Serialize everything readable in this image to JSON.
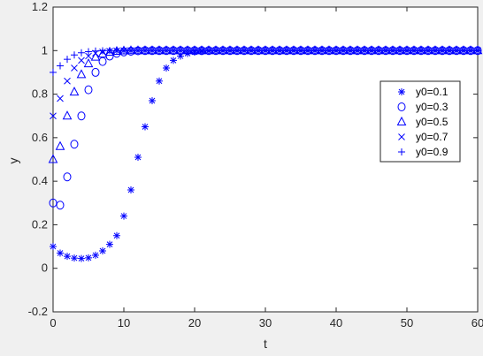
{
  "chart_data": {
    "type": "scatter",
    "title": "",
    "xlabel": "t",
    "ylabel": "y",
    "xlim": [
      0,
      60
    ],
    "ylim": [
      -0.2,
      1.2
    ],
    "xticks": [
      "0",
      "10",
      "20",
      "30",
      "40",
      "50",
      "60"
    ],
    "yticks": [
      "-0.2",
      "0",
      "0.2",
      "0.4",
      "0.6",
      "0.8",
      "1",
      "1.2"
    ],
    "grid": false,
    "legend_position": "right",
    "marker_color": "#0000ff",
    "series": [
      {
        "name": "y0=0.1",
        "marker": "asterisk",
        "x": [
          0,
          1,
          2,
          3,
          4,
          5,
          6,
          7,
          8,
          9,
          10,
          11,
          12,
          13,
          14,
          15,
          16,
          17,
          18,
          19,
          20,
          21,
          22,
          23,
          24,
          25,
          26,
          27,
          28,
          29,
          30,
          31,
          32,
          33,
          34,
          35,
          36,
          37,
          38,
          39,
          40,
          41,
          42,
          43,
          44,
          45,
          46,
          47,
          48,
          49,
          50,
          51,
          52,
          53,
          54,
          55,
          56,
          57,
          58,
          59,
          60
        ],
        "y": [
          0.1,
          0.07,
          0.055,
          0.047,
          0.045,
          0.048,
          0.06,
          0.08,
          0.11,
          0.15,
          0.24,
          0.36,
          0.51,
          0.65,
          0.77,
          0.86,
          0.92,
          0.955,
          0.975,
          0.987,
          0.993,
          0.996,
          0.998,
          0.999,
          1,
          1,
          1,
          1,
          1,
          1,
          1,
          1,
          1,
          1,
          1,
          1,
          1,
          1,
          1,
          1,
          1,
          1,
          1,
          1,
          1,
          1,
          1,
          1,
          1,
          1,
          1,
          1,
          1,
          1,
          1,
          1,
          1,
          1,
          1,
          1,
          1
        ]
      },
      {
        "name": "y0=0.3",
        "marker": "circle",
        "x": [
          0,
          1,
          2,
          3,
          4,
          5,
          6,
          7,
          8,
          9,
          10,
          11,
          12,
          13,
          14,
          15,
          16,
          17,
          18,
          19,
          20,
          21,
          22,
          23,
          24,
          25,
          26,
          27,
          28,
          29,
          30,
          31,
          32,
          33,
          34,
          35,
          36,
          37,
          38,
          39,
          40,
          41,
          42,
          43,
          44,
          45,
          46,
          47,
          48,
          49,
          50,
          51,
          52,
          53,
          54,
          55,
          56,
          57,
          58,
          59,
          60
        ],
        "y": [
          0.3,
          0.29,
          0.42,
          0.57,
          0.7,
          0.82,
          0.9,
          0.95,
          0.975,
          0.988,
          0.994,
          0.997,
          0.999,
          1,
          1,
          1,
          1,
          1,
          1,
          1,
          1,
          1,
          1,
          1,
          1,
          1,
          1,
          1,
          1,
          1,
          1,
          1,
          1,
          1,
          1,
          1,
          1,
          1,
          1,
          1,
          1,
          1,
          1,
          1,
          1,
          1,
          1,
          1,
          1,
          1,
          1,
          1,
          1,
          1,
          1,
          1,
          1,
          1,
          1,
          1,
          1
        ]
      },
      {
        "name": "y0=0.5",
        "marker": "triangle",
        "x": [
          0,
          1,
          2,
          3,
          4,
          5,
          6,
          7,
          8,
          9,
          10,
          11,
          12,
          13,
          14,
          15,
          16,
          17,
          18,
          19,
          20,
          21,
          22,
          23,
          24,
          25,
          26,
          27,
          28,
          29,
          30,
          31,
          32,
          33,
          34,
          35,
          36,
          37,
          38,
          39,
          40,
          41,
          42,
          43,
          44,
          45,
          46,
          47,
          48,
          49,
          50,
          51,
          52,
          53,
          54,
          55,
          56,
          57,
          58,
          59,
          60
        ],
        "y": [
          0.5,
          0.56,
          0.7,
          0.81,
          0.89,
          0.94,
          0.97,
          0.985,
          0.993,
          0.997,
          0.999,
          1,
          1,
          1,
          1,
          1,
          1,
          1,
          1,
          1,
          1,
          1,
          1,
          1,
          1,
          1,
          1,
          1,
          1,
          1,
          1,
          1,
          1,
          1,
          1,
          1,
          1,
          1,
          1,
          1,
          1,
          1,
          1,
          1,
          1,
          1,
          1,
          1,
          1,
          1,
          1,
          1,
          1,
          1,
          1,
          1,
          1,
          1,
          1,
          1,
          1
        ]
      },
      {
        "name": "y0=0.7",
        "marker": "x",
        "x": [
          0,
          1,
          2,
          3,
          4,
          5,
          6,
          7,
          8,
          9,
          10,
          11,
          12,
          13,
          14,
          15,
          16,
          17,
          18,
          19,
          20,
          21,
          22,
          23,
          24,
          25,
          26,
          27,
          28,
          29,
          30,
          31,
          32,
          33,
          34,
          35,
          36,
          37,
          38,
          39,
          40,
          41,
          42,
          43,
          44,
          45,
          46,
          47,
          48,
          49,
          50,
          51,
          52,
          53,
          54,
          55,
          56,
          57,
          58,
          59,
          60
        ],
        "y": [
          0.7,
          0.78,
          0.86,
          0.92,
          0.955,
          0.975,
          0.988,
          0.994,
          0.997,
          0.999,
          1,
          1,
          1,
          1,
          1,
          1,
          1,
          1,
          1,
          1,
          1,
          1,
          1,
          1,
          1,
          1,
          1,
          1,
          1,
          1,
          1,
          1,
          1,
          1,
          1,
          1,
          1,
          1,
          1,
          1,
          1,
          1,
          1,
          1,
          1,
          1,
          1,
          1,
          1,
          1,
          1,
          1,
          1,
          1,
          1,
          1,
          1,
          1,
          1,
          1,
          1
        ]
      },
      {
        "name": "y0=0.9",
        "marker": "plus",
        "x": [
          0,
          1,
          2,
          3,
          4,
          5,
          6,
          7,
          8,
          9,
          10,
          11,
          12,
          13,
          14,
          15,
          16,
          17,
          18,
          19,
          20,
          21,
          22,
          23,
          24,
          25,
          26,
          27,
          28,
          29,
          30,
          31,
          32,
          33,
          34,
          35,
          36,
          37,
          38,
          39,
          40,
          41,
          42,
          43,
          44,
          45,
          46,
          47,
          48,
          49,
          50,
          51,
          52,
          53,
          54,
          55,
          56,
          57,
          58,
          59,
          60
        ],
        "y": [
          0.9,
          0.93,
          0.96,
          0.98,
          0.99,
          0.995,
          0.998,
          0.999,
          1,
          1,
          1,
          1,
          1,
          1,
          1,
          1,
          1,
          1,
          1,
          1,
          1,
          1,
          1,
          1,
          1,
          1,
          1,
          1,
          1,
          1,
          1,
          1,
          1,
          1,
          1,
          1,
          1,
          1,
          1,
          1,
          1,
          1,
          1,
          1,
          1,
          1,
          1,
          1,
          1,
          1,
          1,
          1,
          1,
          1,
          1,
          1,
          1,
          1,
          1,
          1,
          1
        ]
      }
    ]
  }
}
